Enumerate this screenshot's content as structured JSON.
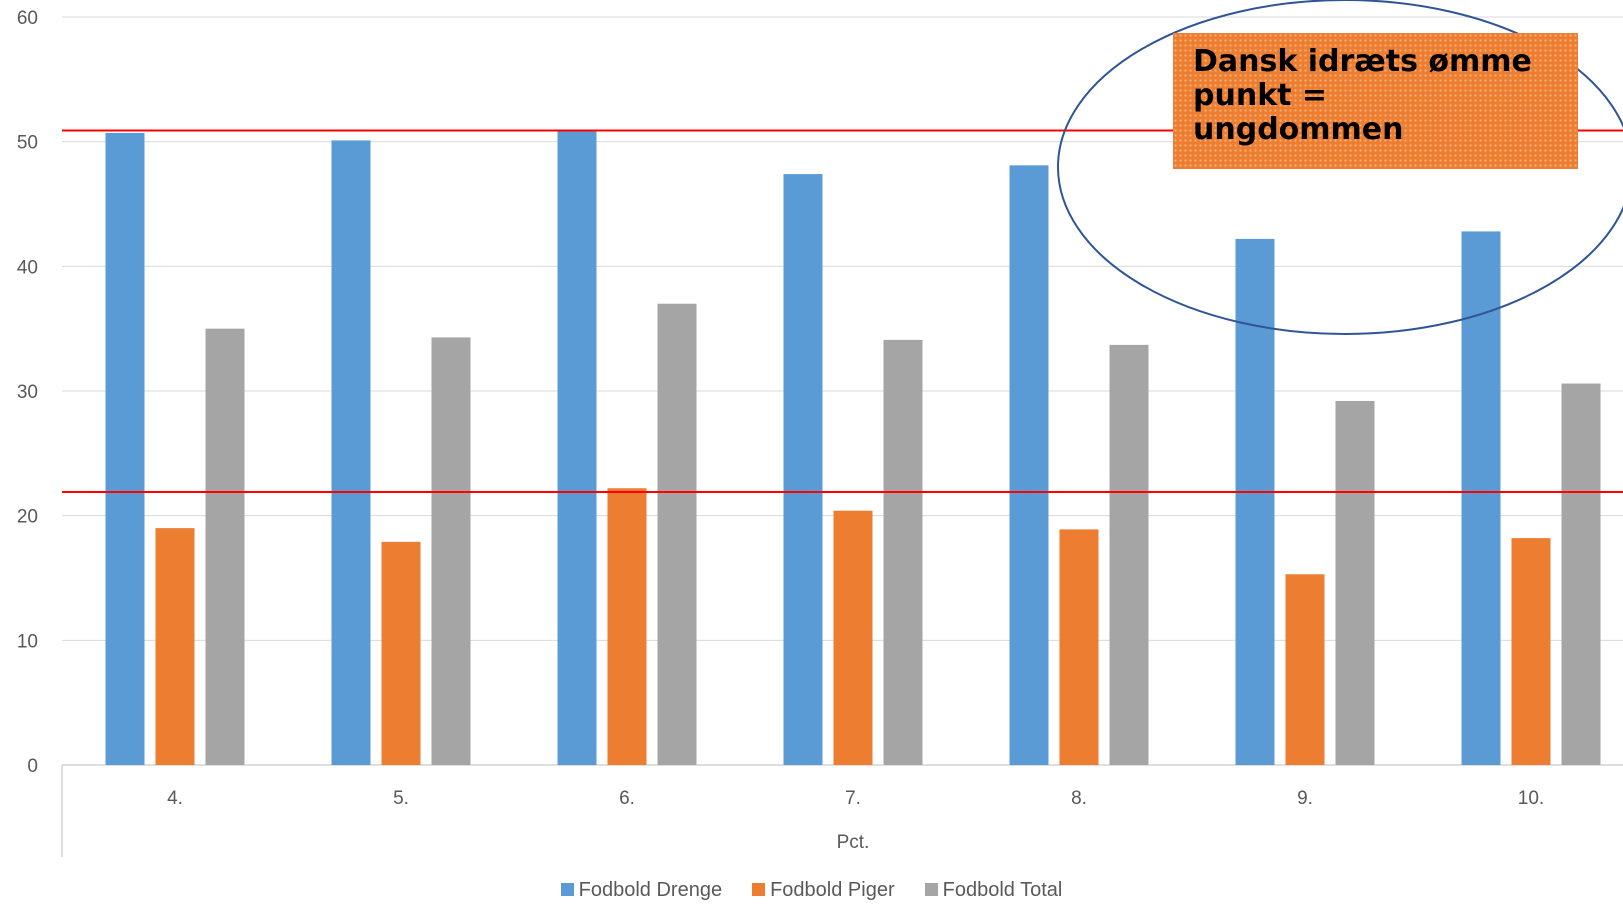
{
  "chart_data": {
    "type": "bar",
    "title": "",
    "categories": [
      "4.",
      "5.",
      "6.",
      "7.",
      "8.",
      "9.",
      "10."
    ],
    "xlabel": "Pct.",
    "ylabel": "",
    "ylim": [
      0,
      60
    ],
    "yticks": [
      0,
      10,
      20,
      30,
      40,
      50,
      60
    ],
    "grid": true,
    "legend_position": "bottom",
    "series": [
      {
        "name": "Fodbold Drenge",
        "color": "#5b9bd5",
        "values": [
          50.7,
          50.1,
          50.9,
          47.4,
          48.1,
          42.2,
          42.8
        ]
      },
      {
        "name": "Fodbold Piger",
        "color": "#ed7d31",
        "values": [
          19.0,
          17.9,
          22.2,
          20.4,
          18.9,
          15.3,
          18.2
        ]
      },
      {
        "name": "Fodbold Total",
        "color": "#a5a5a5",
        "values": [
          35.0,
          34.3,
          37.0,
          34.1,
          33.7,
          29.2,
          30.6
        ]
      }
    ],
    "reference_lines": [
      {
        "y": 50.9,
        "color": "#ff0000"
      },
      {
        "y": 21.9,
        "color": "#ff0000"
      }
    ],
    "annotation": {
      "text": "Dansk idræts ømme\npunkt =\nungdommen",
      "shape": "ellipse",
      "ellipse_color": "#2f5597",
      "box_color": "#ed7d31"
    }
  }
}
